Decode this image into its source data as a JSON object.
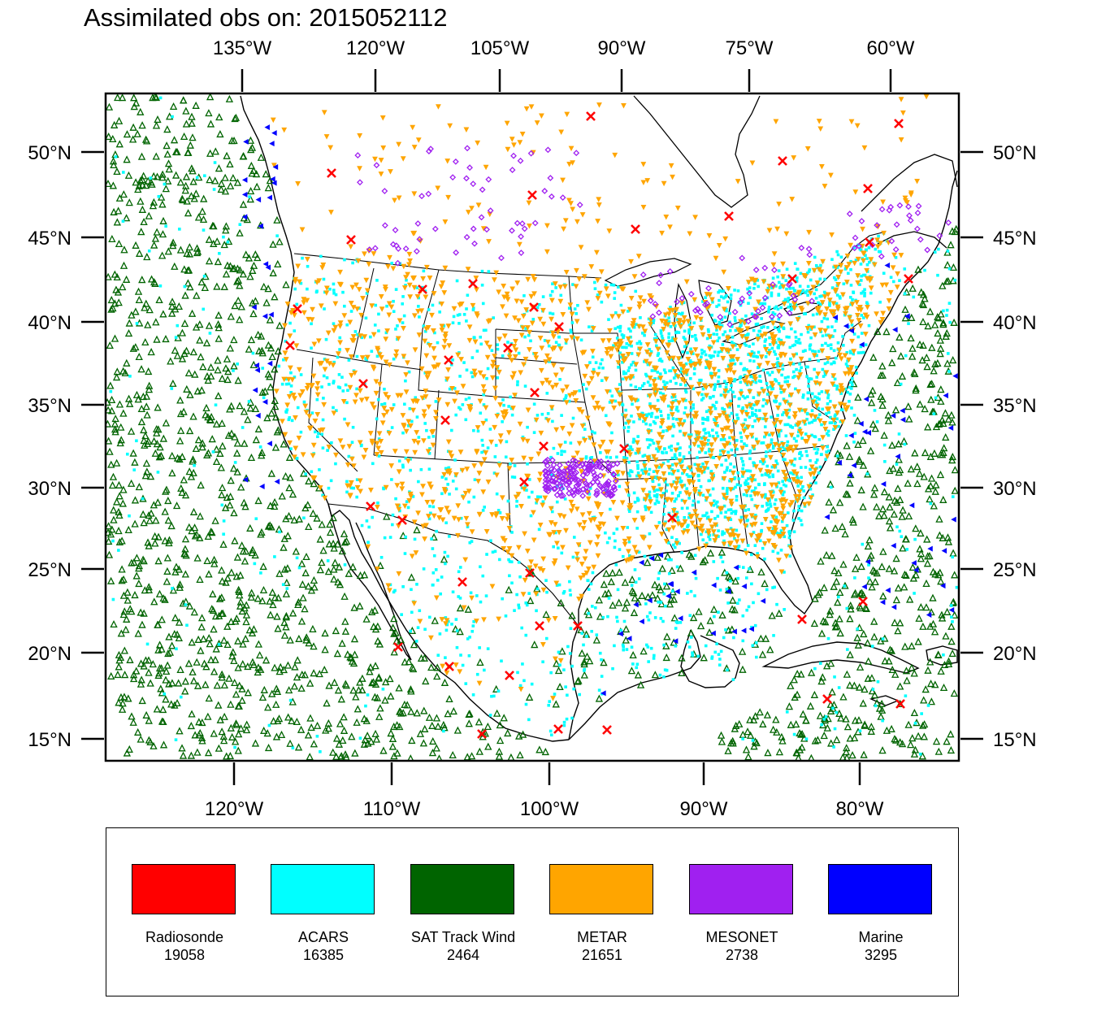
{
  "title": "Assimilated obs on: 2015052112",
  "top_lon_labels": [
    "135°W",
    "120°W",
    "105°W",
    "90°W",
    "75°W",
    "60°W"
  ],
  "bottom_lon_labels": [
    "120°W",
    "110°W",
    "100°W",
    "90°W",
    "80°W"
  ],
  "lat_labels": [
    "50°N",
    "45°N",
    "40°N",
    "35°N",
    "30°N",
    "25°N",
    "20°N",
    "15°N"
  ],
  "legend": [
    {
      "label": "Radiosonde",
      "count": "19058",
      "color": "#ff0000",
      "marker": "x"
    },
    {
      "label": "ACARS",
      "count": "16385",
      "color": "#00ffff",
      "marker": "square"
    },
    {
      "label": "SAT Track Wind",
      "count": "2464",
      "color": "#006400",
      "marker": "triangle-up"
    },
    {
      "label": "METAR",
      "count": "21651",
      "color": "#ffa500",
      "marker": "triangle-down"
    },
    {
      "label": "MESONET",
      "count": "2738",
      "color": "#a020f0",
      "marker": "diamond"
    },
    {
      "label": "Marine",
      "count": "3295",
      "color": "#0000ff",
      "marker": "triangle-left"
    }
  ],
  "map": {
    "projection": "lambert-conformal",
    "domain": "CONUS and surrounding oceans",
    "coastline_color": "#000000",
    "state_border_color": "#000000"
  }
}
